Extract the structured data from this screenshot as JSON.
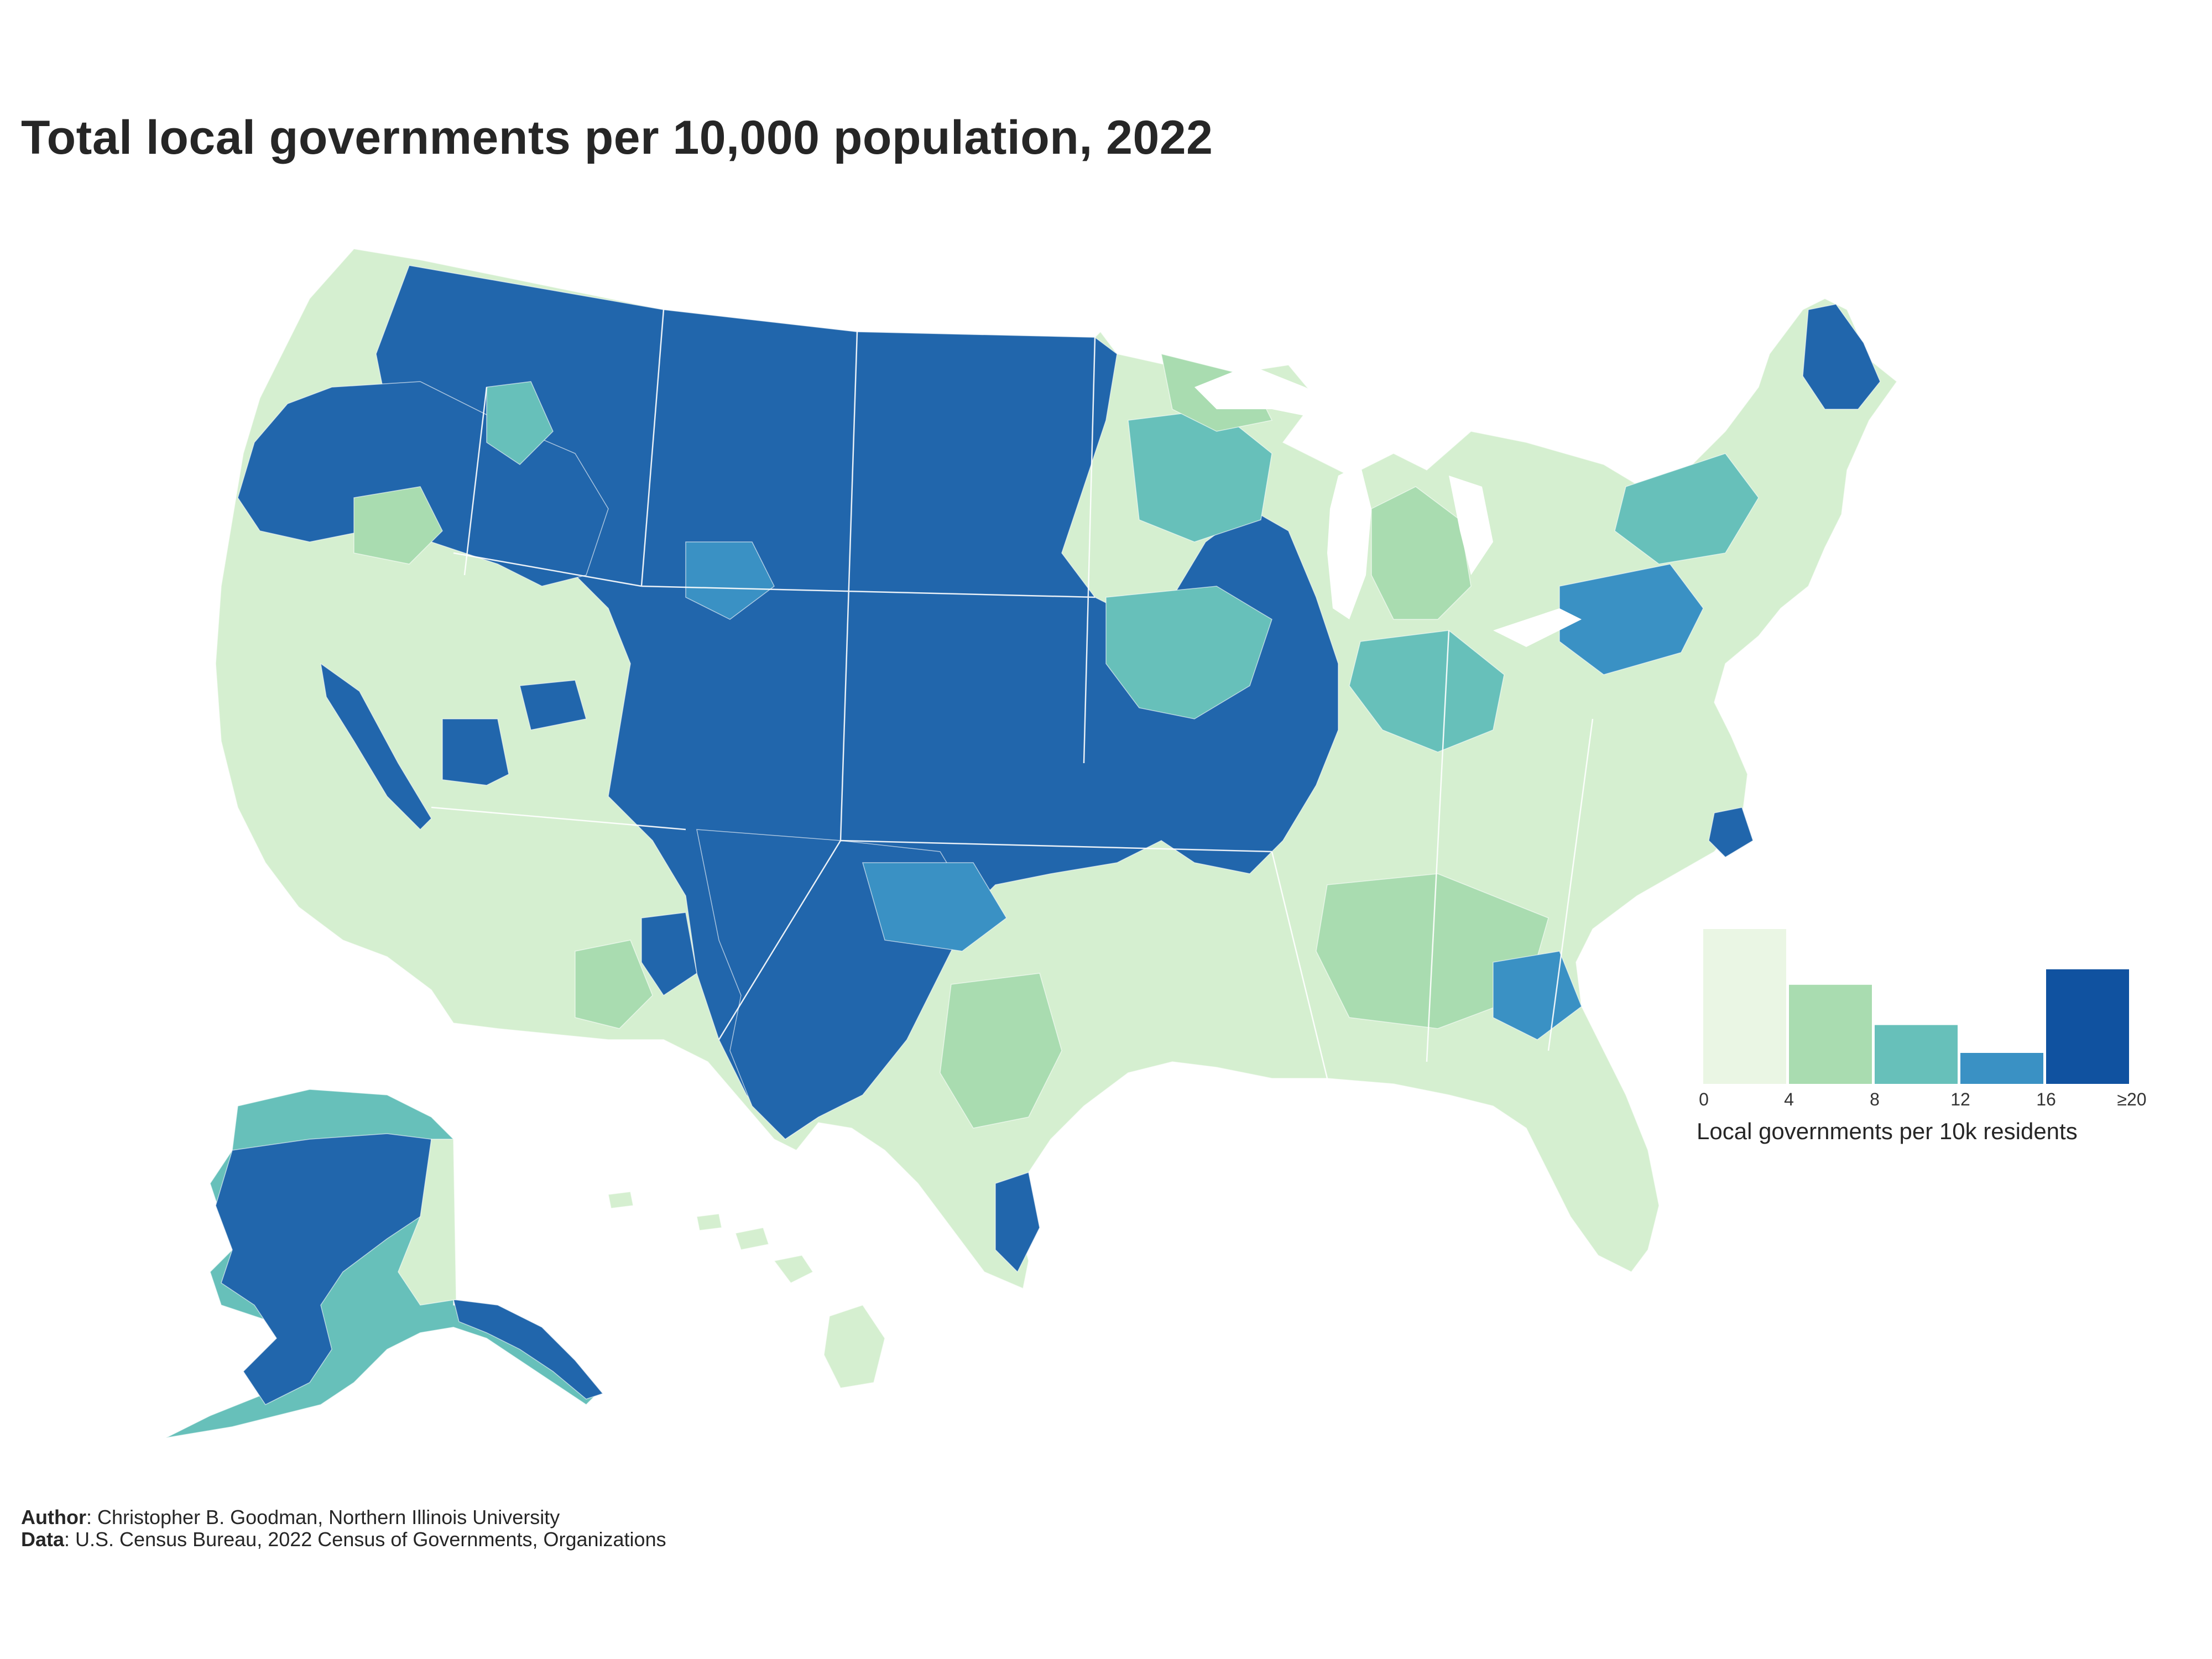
{
  "title": "Total local governments per 10,000 population, 2022",
  "legend": {
    "title": "Local governments per 10k residents",
    "bins": [
      {
        "from": 0,
        "to": 4,
        "color": "#eaf6e4",
        "share": 1.0
      },
      {
        "from": 4,
        "to": 8,
        "color": "#a9dcb0",
        "share": 0.64
      },
      {
        "from": 8,
        "to": 12,
        "color": "#67c0ba",
        "share": 0.38
      },
      {
        "from": 12,
        "to": 16,
        "color": "#3a91c4",
        "share": 0.2
      },
      {
        "from": 16,
        "to": 20,
        "color": "#1052a0",
        "share": 0.74
      }
    ],
    "ticks": [
      "0",
      "4",
      "8",
      "12",
      "16",
      "≥20"
    ]
  },
  "credits": {
    "author_label": "Author",
    "author_text": ": Christopher B. Goodman, Northern Illinois University",
    "data_label": "Data",
    "data_text": ": U.S. Census Bureau, 2022 Census of Governments, Organizations"
  },
  "palette": {
    "bin0": "#d5efd0",
    "bin1": "#a9dcb0",
    "bin2": "#67c0ba",
    "bin3": "#3a91c4",
    "bin4": "#2166ac"
  }
}
